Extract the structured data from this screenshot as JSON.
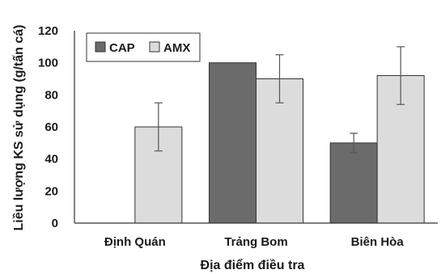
{
  "chart_data": {
    "type": "bar",
    "title": "",
    "xlabel": "Địa điểm điều tra",
    "ylabel": "Liều lượng KS sử dụng (g/tấn cá)",
    "categories": [
      "Định Quán",
      "Trảng Bom",
      "Biên Hòa"
    ],
    "ylim": [
      0,
      120
    ],
    "yticks": [
      0,
      20,
      40,
      60,
      80,
      100,
      120
    ],
    "grid": false,
    "legend_position": "top-left",
    "series": [
      {
        "name": "CAP",
        "color": "#6b6b6b",
        "values": [
          0,
          100,
          50
        ],
        "errors": [
          0,
          0,
          6
        ]
      },
      {
        "name": "AMX",
        "color": "#dcdcdc",
        "values": [
          60,
          90,
          92
        ],
        "errors": [
          15,
          15,
          18
        ]
      }
    ]
  }
}
